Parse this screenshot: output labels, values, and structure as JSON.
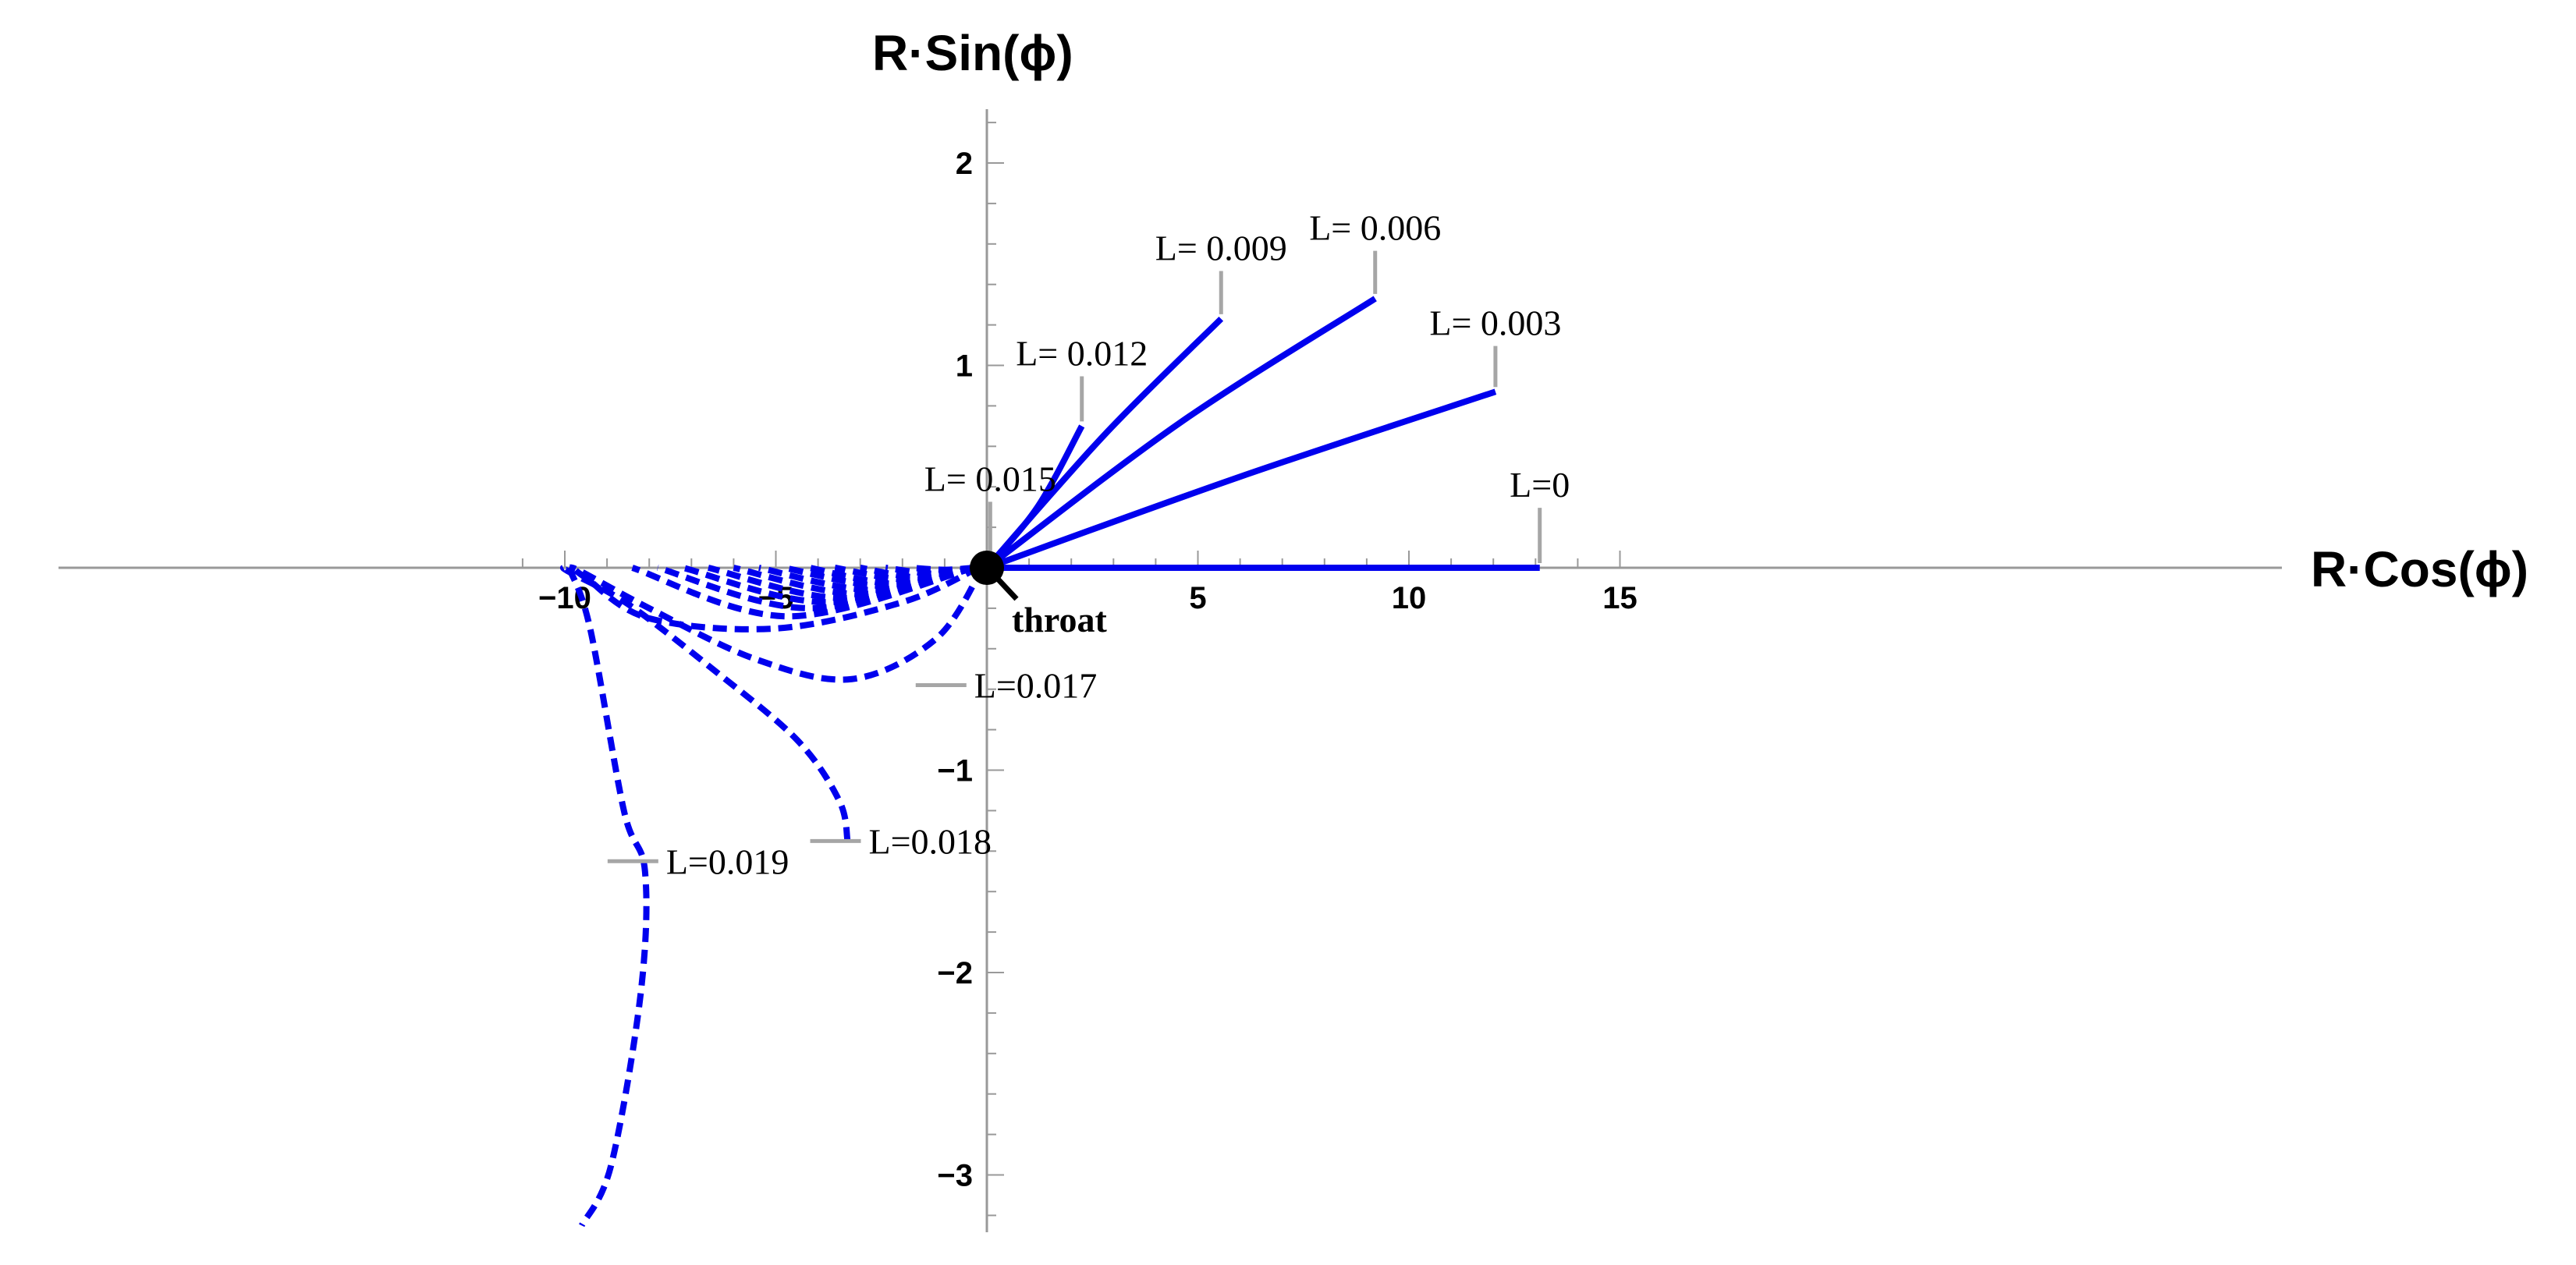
{
  "chart_data": {
    "type": "line",
    "xlabel": "R·Cos(ϕ)",
    "ylabel": "R·Sin(ϕ)",
    "xlim": [
      -12,
      15.5
    ],
    "ylim": [
      -3.25,
      2.25
    ],
    "xticks": [
      -10,
      -5,
      5,
      10,
      15
    ],
    "xtick_labels": [
      "−10",
      "−5",
      "5",
      "10",
      "15"
    ],
    "yticks": [
      2,
      1,
      -1,
      -2,
      -3
    ],
    "ytick_labels": [
      "2",
      "1",
      "−1",
      "−2",
      "−3"
    ],
    "grid": false,
    "series_color": "#0000ee",
    "leader_color": "#a6a6a6",
    "throat": {
      "label": "throat",
      "x": 0,
      "y": 0
    },
    "series": [
      {
        "label": "L=0",
        "style": "solid",
        "points": [
          [
            0,
            0
          ],
          [
            13.1,
            0
          ]
        ],
        "label_pos": [
          13.1,
          0.35
        ]
      },
      {
        "label": "L= 0.003",
        "style": "solid",
        "points": [
          [
            0,
            0
          ],
          [
            6,
            0.45
          ],
          [
            12.05,
            0.87
          ]
        ],
        "label_pos": [
          12.05,
          1.15
        ]
      },
      {
        "label": "L= 0.006",
        "style": "solid",
        "points": [
          [
            0,
            0
          ],
          [
            4.6,
            0.72
          ],
          [
            9.2,
            1.33
          ]
        ],
        "label_pos": [
          9.2,
          1.62
        ]
      },
      {
        "label": "L= 0.009",
        "style": "solid",
        "points": [
          [
            0,
            0
          ],
          [
            2.8,
            0.66
          ],
          [
            5.55,
            1.23
          ]
        ],
        "label_pos": [
          5.55,
          1.52
        ]
      },
      {
        "label": "L= 0.012",
        "style": "solid",
        "points": [
          [
            0,
            0
          ],
          [
            1.2,
            0.3
          ],
          [
            2.25,
            0.7
          ]
        ],
        "label_pos": [
          2.25,
          1.0
        ]
      },
      {
        "label": "L= 0.015",
        "style": "solid",
        "points": [
          [
            0,
            0
          ],
          [
            0.08,
            0.02
          ]
        ],
        "label_pos": [
          0.15,
          0.38
        ]
      },
      {
        "label": "",
        "style": "dashed",
        "points": [
          [
            -0.3,
            0
          ],
          [
            -1,
            -0.01
          ],
          [
            -1.8,
            0
          ]
        ]
      },
      {
        "label": "",
        "style": "dashed",
        "points": [
          [
            -0.3,
            0
          ],
          [
            -1.2,
            -0.03
          ],
          [
            -2.4,
            0
          ]
        ]
      },
      {
        "label": "",
        "style": "dashed",
        "points": [
          [
            -0.3,
            0
          ],
          [
            -1.5,
            -0.05
          ],
          [
            -3,
            0
          ]
        ]
      },
      {
        "label": "",
        "style": "dashed",
        "points": [
          [
            -0.3,
            0
          ],
          [
            -1.8,
            -0.06
          ],
          [
            -3.6,
            0
          ]
        ]
      },
      {
        "label": "",
        "style": "dashed",
        "points": [
          [
            -0.3,
            0
          ],
          [
            -2.1,
            -0.08
          ],
          [
            -4.2,
            0
          ]
        ]
      },
      {
        "label": "",
        "style": "dashed",
        "points": [
          [
            -0.3,
            0
          ],
          [
            -2.4,
            -0.09
          ],
          [
            -4.8,
            0
          ]
        ]
      },
      {
        "label": "",
        "style": "dashed",
        "points": [
          [
            -0.3,
            0
          ],
          [
            -2.7,
            -0.11
          ],
          [
            -5.4,
            0
          ]
        ]
      },
      {
        "label": "",
        "style": "dashed",
        "points": [
          [
            -0.3,
            0
          ],
          [
            -3.0,
            -0.13
          ],
          [
            -6.0,
            0
          ]
        ]
      },
      {
        "label": "",
        "style": "dashed",
        "points": [
          [
            -0.3,
            0
          ],
          [
            -3.4,
            -0.15
          ],
          [
            -6.6,
            0
          ]
        ]
      },
      {
        "label": "",
        "style": "dashed",
        "points": [
          [
            -0.3,
            0
          ],
          [
            -3.8,
            -0.17
          ],
          [
            -7.2,
            0
          ]
        ]
      },
      {
        "label": "",
        "style": "dashed",
        "points": [
          [
            -0.3,
            0
          ],
          [
            -4.2,
            -0.2
          ],
          [
            -7.8,
            0
          ]
        ]
      },
      {
        "label": "",
        "style": "dashed",
        "points": [
          [
            -0.3,
            0
          ],
          [
            -4.7,
            -0.24
          ],
          [
            -8.4,
            0
          ]
        ]
      },
      {
        "label": "",
        "style": "dashed",
        "points": [
          [
            -0.2,
            0
          ],
          [
            -2,
            -0.17
          ],
          [
            -5,
            -0.3
          ],
          [
            -8,
            -0.25
          ],
          [
            -9.5,
            -0.05
          ],
          [
            -9.8,
            0
          ]
        ]
      },
      {
        "label": "L=0.017",
        "style": "dashed",
        "points": [
          [
            -0.1,
            0
          ],
          [
            -1.2,
            -0.35
          ],
          [
            -3.2,
            -0.55
          ],
          [
            -5.5,
            -0.45
          ],
          [
            -8,
            -0.2
          ],
          [
            -9.6,
            -0.02
          ],
          [
            -9.9,
            0
          ]
        ],
        "label_pos": [
          -0.3,
          -0.58
        ]
      },
      {
        "label": "L=0.018",
        "style": "dashed",
        "points": [
          [
            -3.3,
            -1.35
          ],
          [
            -3.5,
            -1.15
          ],
          [
            -4.5,
            -0.85
          ],
          [
            -6.5,
            -0.5
          ],
          [
            -8.5,
            -0.18
          ],
          [
            -9.9,
            -0.02
          ],
          [
            -10,
            0
          ]
        ],
        "label_pos": [
          -2.8,
          -1.35
        ]
      },
      {
        "label": "L=0.019",
        "style": "dashed",
        "points": [
          [
            -9.9,
            0
          ],
          [
            -9.4,
            -0.3
          ],
          [
            -8.6,
            -1.2
          ],
          [
            -8.1,
            -1.5
          ],
          [
            -8.2,
            -2.1
          ],
          [
            -8.9,
            -2.95
          ],
          [
            -9.6,
            -3.25
          ]
        ],
        "label_pos": [
          -7.6,
          -1.45
        ]
      }
    ]
  }
}
